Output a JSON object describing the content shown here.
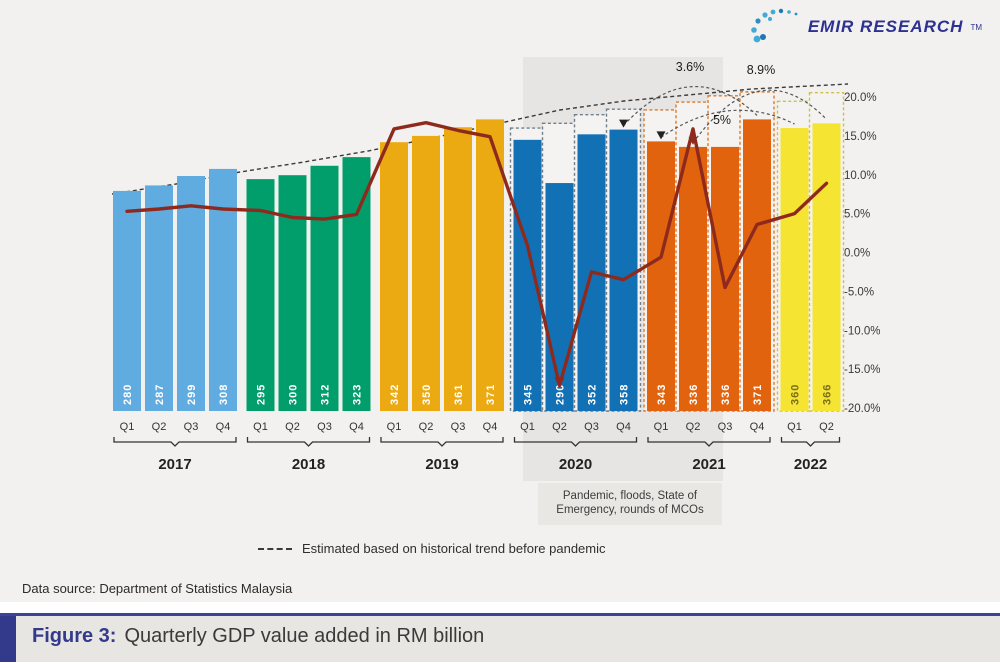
{
  "logo": {
    "name": "EMIR RESEARCH",
    "tm": "TM"
  },
  "chart_data": {
    "type": "bar+line",
    "title": "Quarterly GDP value added in RM billion",
    "bar_unit": "RM billion",
    "line_unit": "percent year-on-year growth (right axis)",
    "years": [
      {
        "year": "2017",
        "quarters": [
          "Q1",
          "Q2",
          "Q3",
          "Q4"
        ],
        "values": [
          280,
          287,
          299,
          308
        ],
        "bar_color": "#60ace1",
        "value_text_color": "#ffffff"
      },
      {
        "year": "2018",
        "quarters": [
          "Q1",
          "Q2",
          "Q3",
          "Q4"
        ],
        "values": [
          295,
          300,
          312,
          323
        ],
        "bar_color": "#019e6c",
        "value_text_color": "#ffffff"
      },
      {
        "year": "2019",
        "quarters": [
          "Q1",
          "Q2",
          "Q3",
          "Q4"
        ],
        "values": [
          342,
          350,
          361,
          371
        ],
        "bar_color": "#ecaa12",
        "value_text_color": "#ffffff"
      },
      {
        "year": "2020",
        "quarters": [
          "Q1",
          "Q2",
          "Q3",
          "Q4"
        ],
        "values": [
          345,
          290,
          352,
          358
        ],
        "bar_color": "#1171b4",
        "value_text_color": "#ffffff"
      },
      {
        "year": "2021",
        "quarters": [
          "Q1",
          "Q2",
          "Q3",
          "Q4"
        ],
        "values": [
          343,
          336,
          336,
          371
        ],
        "bar_color": "#e2630d",
        "value_text_color": "#ffffff"
      },
      {
        "year": "2022",
        "quarters": [
          "Q1",
          "Q2"
        ],
        "values": [
          360,
          366
        ],
        "bar_color": "#f6e433",
        "value_text_color": "#7a6f1c"
      }
    ],
    "growth_line_pct": [
      5.3,
      5.6,
      6.0,
      5.6,
      5.4,
      4.5,
      4.3,
      4.9,
      15.9,
      16.7,
      15.7,
      14.9,
      0.9,
      -17.1,
      -2.5,
      -3.5,
      -0.6,
      15.9,
      -4.5,
      3.6,
      5.0,
      8.9
    ],
    "growth_line_color": "#8e2a1d",
    "estimates": {
      "first_quarter": "2020 Q1",
      "values": [
        360,
        366,
        377,
        384,
        383,
        393,
        401,
        406,
        394,
        405
      ],
      "stroke_colors": {
        "2020": "#6e7f8d",
        "2021": "#db7a2c",
        "2022": "#cfc04a"
      }
    },
    "right_axis_ticks": [
      "20.0%",
      "15.0%",
      "10.0%",
      "5.0%",
      "0.0%",
      "-5.0%",
      "-10.0%",
      "-15.0%",
      "-20.0%"
    ],
    "right_axis_range": [
      -20,
      20
    ],
    "annotations": [
      {
        "text": "3.6%",
        "from": "2020 Q4",
        "to": "2021 Q4"
      },
      {
        "text": "8.9%",
        "from": "2021 Q2",
        "to": "2022 Q2"
      },
      {
        "text": "5%",
        "from": "2021 Q1",
        "to": "2022 Q1"
      }
    ],
    "pandemic_band": {
      "lines": [
        "Pandemic, floods, State of",
        "Emergency, rounds of MCOs"
      ]
    }
  },
  "legend": {
    "text": "Estimated based on historical trend before pandemic"
  },
  "data_source": "Data source: Department of Statistics Malaysia",
  "caption": {
    "prefix": "Figure 3:",
    "text": "Quarterly GDP value added in RM billion"
  }
}
